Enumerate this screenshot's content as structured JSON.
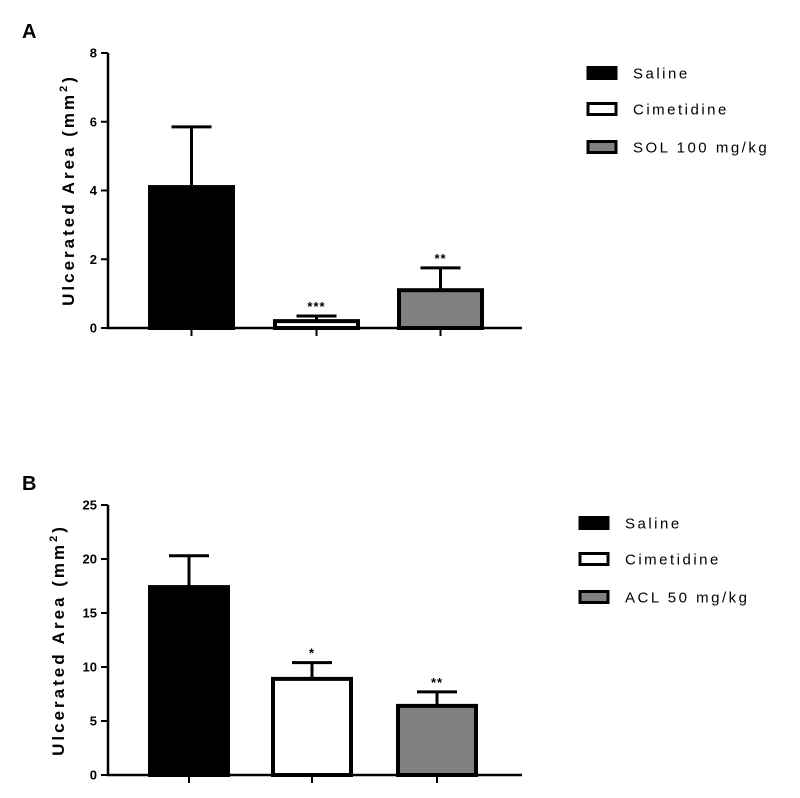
{
  "chart_data": [
    {
      "panel": "A",
      "type": "bar",
      "categories": [
        "Saline",
        "Cimetidine",
        "SOL 100 mg/kg"
      ],
      "values": [
        4.1,
        0.2,
        1.1
      ],
      "errors": [
        1.75,
        0.15,
        0.65
      ],
      "significance": [
        "",
        "***",
        "**"
      ],
      "colors": [
        "#000000",
        "#ffffff",
        "#808080"
      ],
      "ylabel": "Ulcerated Area (mm",
      "ylabel_sup": "2",
      "ylabel_close": ")",
      "ylim": [
        0,
        8
      ],
      "yticks": [
        "0",
        "2",
        "4",
        "6",
        "8"
      ],
      "legend": [
        "Saline",
        "Cimetidine",
        "SOL 100 mg/kg"
      ],
      "legend_position": "right",
      "grid": false
    },
    {
      "panel": "B",
      "type": "bar",
      "categories": [
        "Saline",
        "Cimetidine",
        "ACL 50 mg/kg"
      ],
      "values": [
        17.4,
        8.9,
        6.4
      ],
      "errors": [
        2.9,
        1.5,
        1.3
      ],
      "significance": [
        "",
        "*",
        "**"
      ],
      "colors": [
        "#000000",
        "#ffffff",
        "#808080"
      ],
      "ylabel": "Ulcerated Area (mm",
      "ylabel_sup": "2",
      "ylabel_close": ")",
      "ylim": [
        0,
        25
      ],
      "yticks": [
        "0",
        "5",
        "10",
        "15",
        "20",
        "25"
      ],
      "legend": [
        "Saline",
        "Cimetidine",
        "ACL 50 mg/kg"
      ],
      "legend_position": "right",
      "grid": false
    }
  ]
}
